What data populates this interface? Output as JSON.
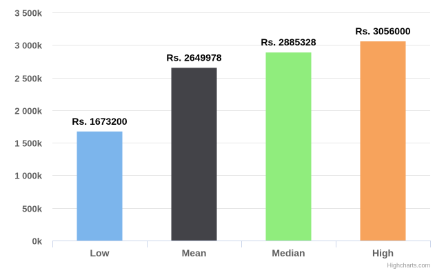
{
  "chart_data": {
    "type": "bar",
    "categories": [
      "Low",
      "Mean",
      "Median",
      "High"
    ],
    "values": [
      1673200,
      2649978,
      2885328,
      3056000
    ],
    "data_labels": [
      "Rs. 1673200",
      "Rs. 2649978",
      "Rs. 2885328",
      "Rs. 3056000"
    ],
    "colors": [
      "#7cb5ec",
      "#434348",
      "#90ed7d",
      "#f7a35c"
    ],
    "ylim": [
      0,
      3500000
    ],
    "y_ticks": [
      0,
      500000,
      1000000,
      1500000,
      2000000,
      2500000,
      3000000,
      3500000
    ],
    "y_tick_labels": [
      "0k",
      "500k",
      "1 000k",
      "1 500k",
      "2 000k",
      "2 500k",
      "3 000k",
      "3 500k"
    ],
    "grid": true,
    "legend": false
  },
  "credits": "Highcharts.com"
}
